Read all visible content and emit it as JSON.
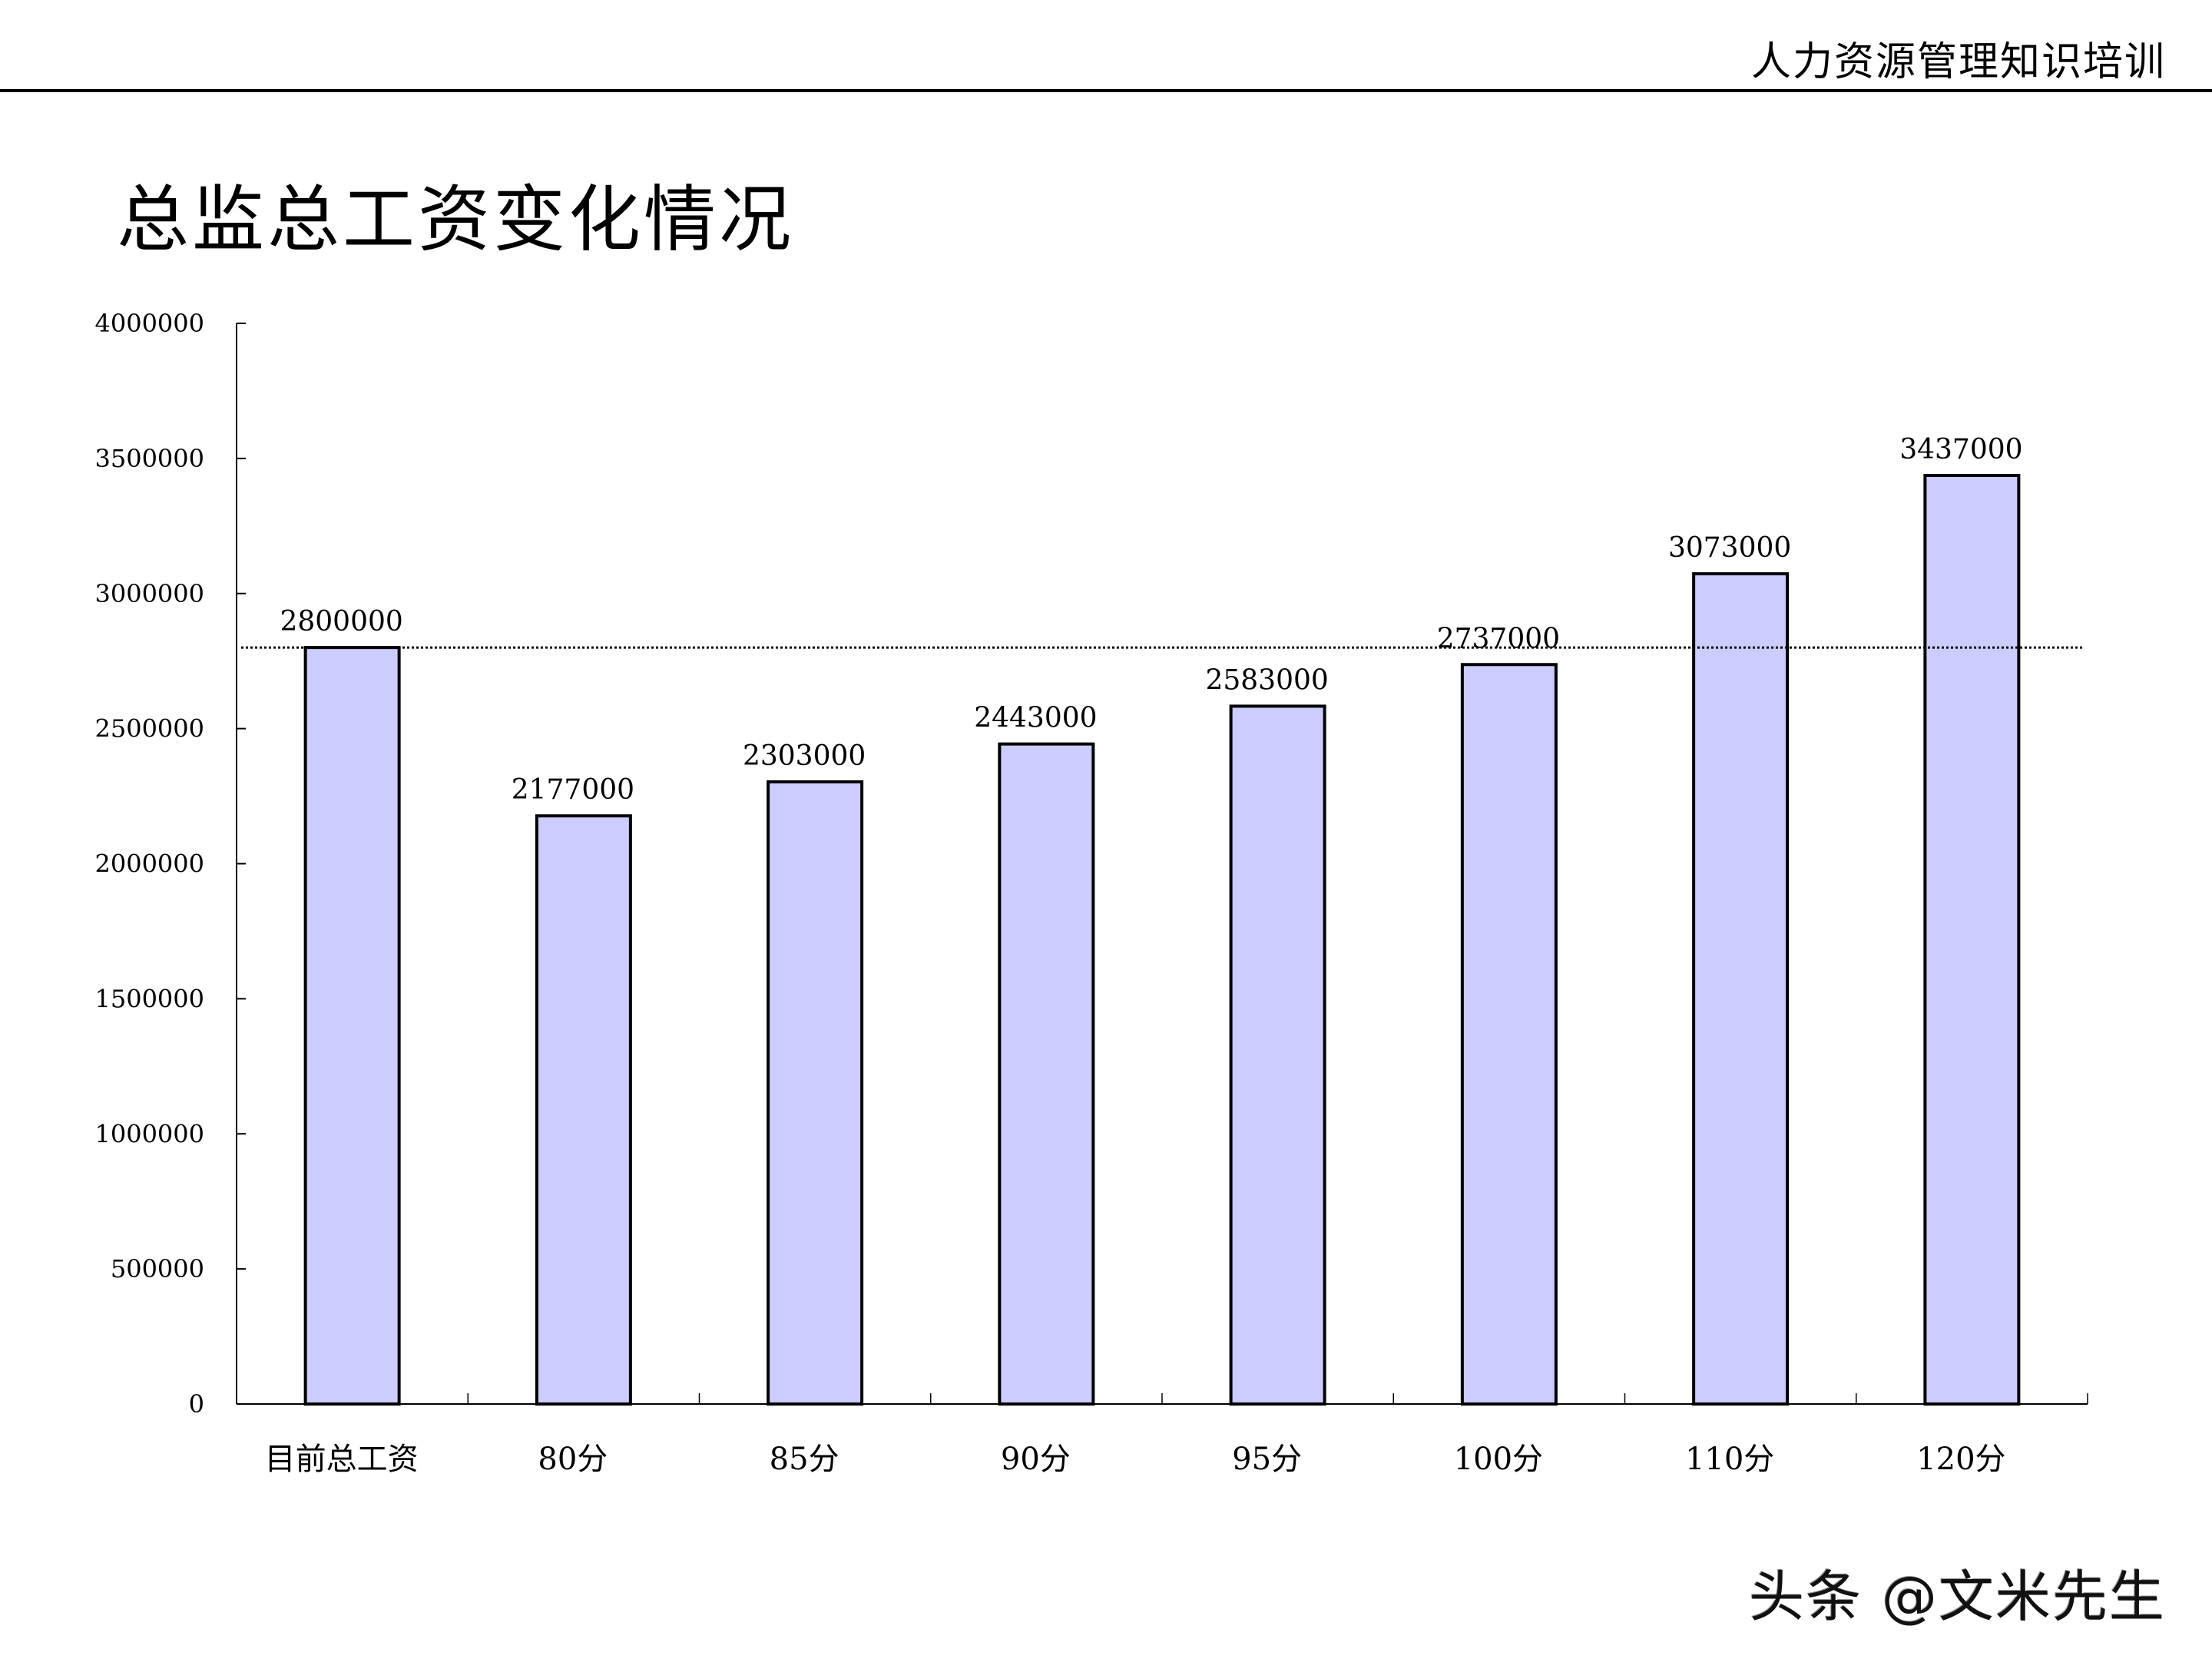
{
  "header": {
    "title": "人力资源管理知识培训"
  },
  "page": {
    "title": "总监总工资变化情况"
  },
  "watermark": {
    "text": "头条 @文米先生"
  },
  "colors": {
    "bar_fill": "#CCCCFF",
    "bar_stroke": "#000000",
    "reference_line": "#000000"
  },
  "chart_data": {
    "type": "bar",
    "title": "总监总工资变化情况",
    "xlabel": "",
    "ylabel": "",
    "categories": [
      "目前总工资",
      "80分",
      "85分",
      "90分",
      "95分",
      "100分",
      "110分",
      "120分"
    ],
    "values": [
      2800000,
      2177000,
      2303000,
      2443000,
      2583000,
      2737000,
      3073000,
      3437000
    ],
    "value_labels": [
      "2800000",
      "2177000",
      "2303000",
      "2443000",
      "2583000",
      "2737000",
      "3073000",
      "3437000"
    ],
    "ylim": [
      0,
      4000000
    ],
    "yticks": [
      0,
      500000,
      1000000,
      1500000,
      2000000,
      2500000,
      3000000,
      3500000,
      4000000
    ],
    "ytick_labels": [
      "0",
      "500000",
      "1000000",
      "1500000",
      "2000000",
      "2500000",
      "3000000",
      "3500000",
      "4000000"
    ],
    "reference_line": {
      "value": 2800000,
      "style": "dotted"
    },
    "grid": false,
    "legend": null
  }
}
